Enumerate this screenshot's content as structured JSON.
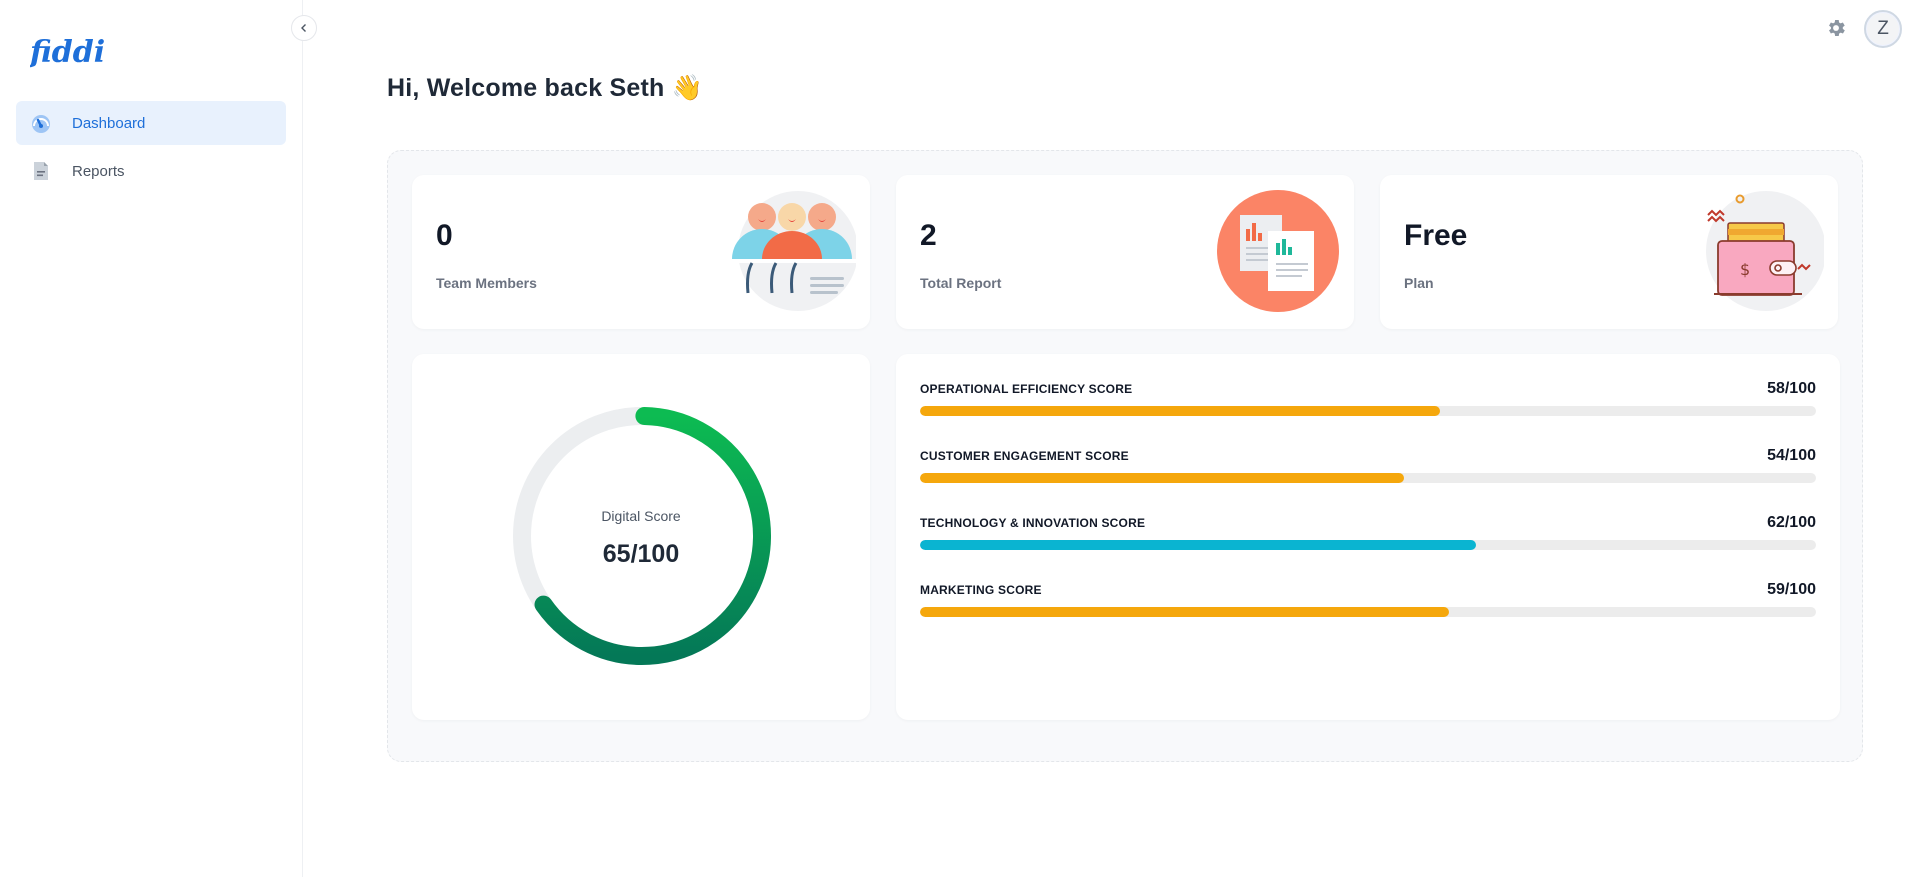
{
  "app": {
    "logo_text": "fiddi"
  },
  "sidebar": {
    "items": [
      {
        "label": "Dashboard",
        "icon": "dashboard-icon",
        "active": true
      },
      {
        "label": "Reports",
        "icon": "report-icon",
        "active": false
      }
    ]
  },
  "topbar": {
    "avatar_initial": "Z",
    "settings_icon": "gear-icon"
  },
  "welcome": {
    "text": "Hi, Welcome back Seth 👋"
  },
  "stats": [
    {
      "value": "0",
      "label": "Team Members",
      "icon": "team-illustration"
    },
    {
      "value": "2",
      "label": "Total Report",
      "icon": "reports-illustration"
    },
    {
      "value": "Free",
      "label": "Plan",
      "icon": "wallet-illustration"
    }
  ],
  "digital_score": {
    "label": "Digital Score",
    "value_text": "65/100",
    "value": 65,
    "max": 100
  },
  "metrics": [
    {
      "name": "OPERATIONAL EFFICIENCY SCORE",
      "value_text": "58/100",
      "value": 58,
      "color": "#f5a70c"
    },
    {
      "name": "CUSTOMER ENGAGEMENT SCORE",
      "value_text": "54/100",
      "value": 54,
      "color": "#f5a70c"
    },
    {
      "name": "TECHNOLOGY & INNOVATION SCORE",
      "value_text": "62/100",
      "value": 62,
      "color": "#0ab4d1"
    },
    {
      "name": "MARKETING SCORE",
      "value_text": "59/100",
      "value": 59,
      "color": "#f5a70c"
    }
  ],
  "colors": {
    "accent": "#1e6fd9",
    "ring_start": "#0dbb52",
    "ring_end": "#047857",
    "track": "#ececec"
  }
}
